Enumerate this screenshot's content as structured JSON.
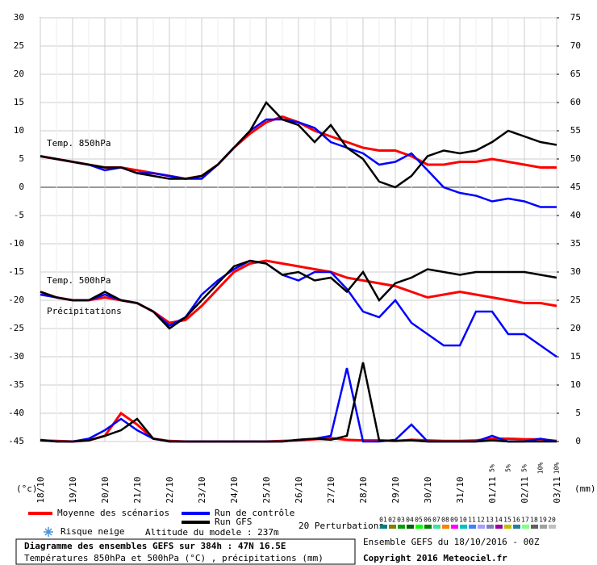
{
  "chart_data": {
    "type": "line",
    "annotations": [
      "Temp. 850hPa",
      "Temp. 500hPa",
      "Précipitations"
    ],
    "categories": [
      "18/10",
      null,
      "19/10",
      null,
      "20/10",
      null,
      "21/10",
      null,
      "22/10",
      null,
      "23/10",
      null,
      "24/10",
      null,
      "25/10",
      null,
      "26/10",
      null,
      "27/10",
      null,
      "28/10",
      null,
      "29/10",
      null,
      "30/10",
      null,
      "31/10",
      null,
      "01/11",
      null,
      "02/11",
      null,
      "03/11"
    ],
    "ylim": [
      -45,
      30
    ],
    "yticks": [
      30,
      25,
      20,
      15,
      10,
      5,
      0,
      -5,
      -10,
      -15,
      -20,
      -25,
      -30,
      -35,
      -40,
      -45
    ],
    "y2lim": [
      0,
      75
    ],
    "y2ticks": [
      75,
      70,
      65,
      60,
      55,
      50,
      45,
      40,
      35,
      30,
      25,
      20,
      15,
      10,
      5,
      0
    ],
    "ylabel": "(°c)",
    "y2label": "(mm)",
    "grid": true,
    "series": [
      {
        "name": "Moyenne des scénarios",
        "color": "#ff0000",
        "values": [
          5.5,
          5,
          4.5,
          4,
          3.5,
          3.5,
          3,
          2.5,
          2,
          1.5,
          2,
          4,
          7,
          9.5,
          11.5,
          12.5,
          11.5,
          10,
          9,
          8,
          7,
          6.5,
          6.5,
          5.5,
          4,
          4,
          4.5,
          4.5,
          5,
          4.5,
          4,
          3.5,
          3.5
        ]
      },
      {
        "name": "Run de contrôle",
        "color": "#0000ff",
        "values": [
          5.5,
          5,
          4.5,
          4,
          3,
          3.5,
          2.5,
          2.5,
          2,
          1.5,
          1.5,
          4,
          7,
          10,
          12,
          12,
          11.5,
          10.5,
          8,
          7,
          6,
          4,
          4.5,
          6,
          3,
          0,
          -1,
          -1.5,
          -2.5,
          -2,
          -2.5,
          -3.5,
          -3.5
        ]
      },
      {
        "name": "Run GFS",
        "color": "#000000",
        "values": [
          5.5,
          5,
          4.5,
          4,
          3.5,
          3.5,
          2.5,
          2,
          1.5,
          1.5,
          2,
          4,
          7,
          10,
          15,
          12,
          11,
          8,
          11,
          7,
          5,
          1,
          0,
          2,
          5.5,
          6.5,
          6,
          6.5,
          8,
          10,
          9,
          8,
          7.5
        ]
      },
      {
        "color": "#ff0000",
        "values": [
          -18.5,
          -19.5,
          -20,
          -20,
          -19.5,
          -20,
          -20.5,
          -22,
          -24,
          -23.5,
          -21,
          -18,
          -15,
          -13.5,
          -13,
          -13.5,
          -14,
          -14.5,
          -15,
          -16,
          -16.5,
          -17,
          -17.5,
          -18.5,
          -19.5,
          -19,
          -18.5,
          -19,
          -19.5,
          -20,
          -20.5,
          -20.5,
          -21
        ]
      },
      {
        "color": "#0000ff",
        "values": [
          -19,
          -19.5,
          -20,
          -20,
          -19,
          -20,
          -20.5,
          -22,
          -24.5,
          -23,
          -19,
          -16.5,
          -14.5,
          -13,
          -13.5,
          -15.5,
          -16.5,
          -15,
          -15,
          -18,
          -22,
          -23,
          -20,
          -24,
          -26,
          -28,
          -28,
          -22,
          -22,
          -26,
          -26,
          -28,
          -30
        ]
      },
      {
        "color": "#000000",
        "values": [
          -18.5,
          -19.5,
          -20,
          -20,
          -18.5,
          -20,
          -20.5,
          -22,
          -25,
          -23,
          -20,
          -17,
          -14,
          -13,
          -13.5,
          -15.5,
          -15,
          -16.5,
          -16,
          -18.5,
          -15,
          -20,
          -17,
          -16,
          -14.5,
          -15,
          -15.5,
          -15,
          -15,
          -15,
          -15,
          -15.5,
          -16
        ]
      },
      {
        "color": "#ff0000",
        "axis": "y2",
        "values": [
          0.2,
          0.1,
          0,
          0.2,
          1,
          5,
          3,
          0.5,
          0.1,
          0,
          0,
          0,
          0,
          0,
          0,
          0.1,
          0.2,
          0.4,
          0.6,
          0.3,
          0.2,
          0.2,
          0.1,
          0.3,
          0.2,
          0.1,
          0.1,
          0.2,
          0.5,
          0.5,
          0.4,
          0.4,
          0.1
        ]
      },
      {
        "color": "#0000ff",
        "axis": "y2",
        "values": [
          0.3,
          0,
          0,
          0.5,
          2,
          4,
          2,
          0.5,
          0,
          0,
          0,
          0,
          0,
          0,
          0,
          0,
          0.3,
          0.5,
          1,
          13,
          0,
          0,
          0.3,
          3,
          0,
          0,
          0,
          0,
          1,
          0,
          0,
          0.5,
          0
        ]
      },
      {
        "color": "#000000",
        "axis": "y2",
        "values": [
          0.2,
          0,
          0,
          0.2,
          1,
          2,
          4,
          0.5,
          0,
          0,
          0,
          0,
          0,
          0,
          0,
          0,
          0.3,
          0.5,
          0.3,
          1,
          14,
          0.2,
          0.1,
          0.2,
          0,
          0,
          0,
          0,
          0.2,
          0,
          0,
          0,
          0
        ]
      }
    ],
    "snow_risk_label": "Risque neige",
    "snow_risk": [
      null,
      null,
      null,
      null,
      null,
      null,
      null,
      null,
      null,
      null,
      null,
      null,
      null,
      null,
      null,
      null,
      null,
      null,
      null,
      null,
      null,
      null,
      null,
      null,
      null,
      null,
      null,
      null,
      "5%",
      "5%",
      "5%",
      "10%",
      "10%"
    ],
    "altitude": "Altitude du modele : 237m",
    "perturbations_label": "20 Perturbations",
    "perturbations": [
      {
        "name": "01",
        "color": "#008080"
      },
      {
        "name": "02",
        "color": "#808000"
      },
      {
        "name": "03",
        "color": "#00a000"
      },
      {
        "name": "04",
        "color": "#006400"
      },
      {
        "name": "05",
        "color": "#00ff00"
      },
      {
        "name": "06",
        "color": "#008000"
      },
      {
        "name": "07",
        "color": "#40e0a0"
      },
      {
        "name": "08",
        "color": "#ff8000"
      },
      {
        "name": "09",
        "color": "#ff00ff"
      },
      {
        "name": "10",
        "color": "#00c0c0"
      },
      {
        "name": "11",
        "color": "#4080ff"
      },
      {
        "name": "12",
        "color": "#a0a0ff"
      },
      {
        "name": "13",
        "color": "#8080c0"
      },
      {
        "name": "14",
        "color": "#a000a0"
      },
      {
        "name": "15",
        "color": "#c0c000"
      },
      {
        "name": "16",
        "color": "#2080a0"
      },
      {
        "name": "17",
        "color": "#80ff80"
      },
      {
        "name": "18",
        "color": "#606060"
      },
      {
        "name": "19",
        "color": "#a0a0a0"
      },
      {
        "name": "20",
        "color": "#c0c0c0"
      }
    ]
  },
  "info": {
    "title": "Diagramme des ensembles GEFS sur 384h : 47N 16.5E",
    "subtitle": "Températures 850hPa et 500hPa (°C) , précipitations (mm)",
    "run": "Ensemble GEFS du 18/10/2016 - 00Z",
    "copyright": "Copyright 2016 Meteociel.fr"
  }
}
